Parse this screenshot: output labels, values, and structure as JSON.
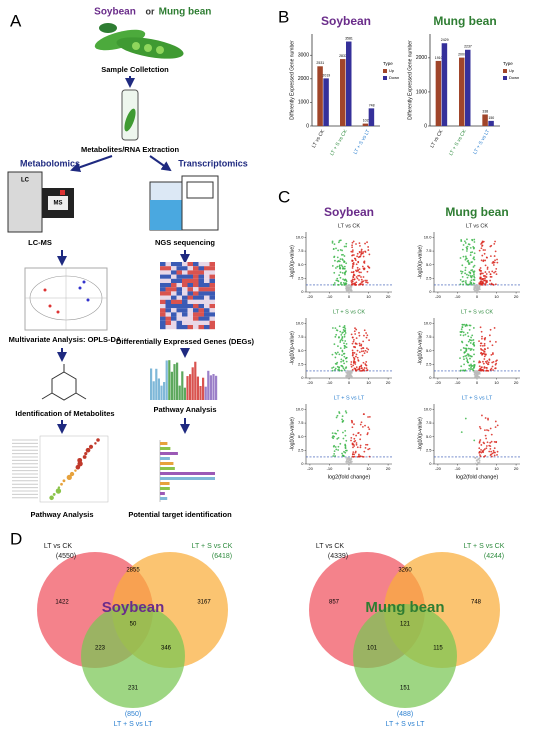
{
  "panel_labels": [
    "A",
    "B",
    "C",
    "D"
  ],
  "workflow": {
    "species_1": "Soybean",
    "or": "or",
    "species_2": "Mung bean",
    "sample": "Sample Colletction",
    "extraction": "Metabolites/RNA Extraction",
    "metabolomics": "Metabolomics",
    "transcriptomics": "Transcriptomics",
    "lc": "LC",
    "ms": "MS",
    "lcms": "LC-MS",
    "ngs": "NGS sequencing",
    "opls": "Multivariate Analysis: OPLS-DA",
    "degs": "Differentially Expressed Genes (DEGs)",
    "identification": "Identification of Metabolites",
    "pathway_right": "Pathway Analysis",
    "pathway_left": "Pathway Analysis",
    "target": "Potential target identification"
  },
  "chart_data": [
    {
      "type": "bar",
      "title": "Soybean",
      "title_color": "#6a2c8a",
      "y_label": "Differently Expressed Gene number",
      "categories": [
        "LT vs CK",
        "LT + S vs CK",
        "LT + S vs LT"
      ],
      "category_colors": [
        "#222222",
        "#2e8b3e",
        "#2a7fd0"
      ],
      "legend_title": "Type",
      "series": [
        {
          "name": "Up",
          "color": "#a0452a",
          "values": [
            2531,
            2837,
            102
          ]
        },
        {
          "name": "Down",
          "color": "#35309a",
          "values": [
            2019,
            3581,
            748
          ]
        }
      ],
      "ylim": [
        0,
        3900
      ],
      "yticks": [
        0,
        1000,
        2000,
        3000
      ]
    },
    {
      "type": "bar",
      "title": "Mung bean",
      "title_color": "#2e7d32",
      "y_label": "Differently Expressed Gene number",
      "categories": [
        "LT vs CK",
        "LT + S vs CK",
        "LT + S vs LT"
      ],
      "category_colors": [
        "#222222",
        "#2e8b3e",
        "#2a7fd0"
      ],
      "legend_title": "Type",
      "series": [
        {
          "name": "Up",
          "color": "#a0452a",
          "values": [
            1910,
            2007,
            338
          ]
        },
        {
          "name": "Down",
          "color": "#35309a",
          "values": [
            2429,
            2237,
            150
          ]
        }
      ],
      "ylim": [
        0,
        2700
      ],
      "yticks": [
        0,
        1000,
        2000
      ]
    }
  ],
  "volcano": {
    "species": [
      "Soybean",
      "Mung bean"
    ],
    "species_colors": [
      "#6a2c8a",
      "#2e7d32"
    ],
    "comparisons": [
      "LT vs CK",
      "LT + S vs CK",
      "LT + S vs LT"
    ],
    "comparison_colors": [
      "#222222",
      "#2e8b3e",
      "#2a7fd0"
    ],
    "y_label": "-log10(p-value)",
    "x_label": "log2(fold change)",
    "xlim": [
      -22,
      22
    ],
    "ylim": [
      0,
      11
    ],
    "xticks": [
      -20,
      -10,
      0,
      10,
      20
    ],
    "yticks": [
      0,
      2.5,
      {
        "value": 5,
        "label": "5.0"
      },
      7.5,
      {
        "value": 10,
        "label": "10.0"
      }
    ]
  },
  "venn": [
    {
      "title": "Soybean",
      "title_color": "#6a2c8a",
      "sets": [
        {
          "name": "LT vs CK",
          "total": 4550,
          "total_label": "(4550)",
          "color": "#f0525e",
          "label_color": "#222222"
        },
        {
          "name": "LT + S vs CK",
          "total": 6418,
          "total_label": "(6418)",
          "color": "#f9ad3a",
          "label_color": "#2e8b3e"
        },
        {
          "name": "LT + S vs LT",
          "total": 850,
          "total_label": "(850)",
          "color": "#78c653",
          "label_color": "#2a7fd0"
        }
      ],
      "regions": {
        "only_a": 1422,
        "ab": 2855,
        "only_b": 3167,
        "abc": 50,
        "ac": 223,
        "bc": 346,
        "only_c": 231
      }
    },
    {
      "title": "Mung bean",
      "title_color": "#2e7d32",
      "sets": [
        {
          "name": "LT vs CK",
          "total": 4339,
          "total_label": "(4339)",
          "color": "#f0525e",
          "label_color": "#222222"
        },
        {
          "name": "LT + S vs CK",
          "total": 4244,
          "total_label": "(4244)",
          "color": "#f9ad3a",
          "label_color": "#2e8b3e"
        },
        {
          "name": "LT + S vs LT",
          "total": 488,
          "total_label": "(488)",
          "color": "#78c653",
          "label_color": "#2a7fd0"
        }
      ],
      "regions": {
        "only_a": 857,
        "ab": 3260,
        "only_b": 748,
        "abc": 121,
        "ac": 101,
        "bc": 115,
        "only_c": 151
      }
    }
  ]
}
